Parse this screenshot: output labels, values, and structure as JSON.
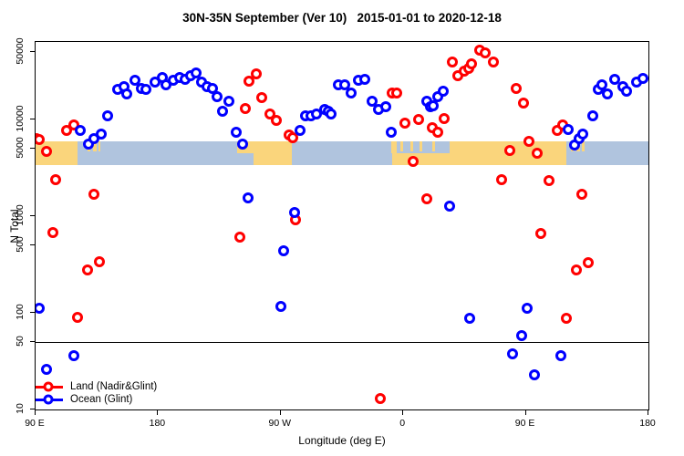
{
  "title": "30N-35N September (Ver 10)   2015-01-01 to 2020-12-18",
  "chart_data": {
    "type": "scatter",
    "title": "30N-35N September (Ver 10)   2015-01-01 to 2020-12-18",
    "xlabel": "Longitude (deg E)",
    "ylabel": "N Total",
    "y_scale": "log",
    "ylim": [
      10,
      64000
    ],
    "xlim_deg": [
      90,
      540
    ],
    "grid": false,
    "legend_position": "bottom-left",
    "reference_line_y": 50,
    "x_axis": {
      "ticks": [
        {
          "pos": 90,
          "label": "90 E"
        },
        {
          "pos": 180,
          "label": "180"
        },
        {
          "pos": 270,
          "label": "90 W"
        },
        {
          "pos": 360,
          "label": "0"
        },
        {
          "pos": 450,
          "label": "90 E"
        },
        {
          "pos": 540,
          "label": "180"
        }
      ]
    },
    "y_axis": {
      "ticks": [
        {
          "v": 10,
          "label": "10"
        },
        {
          "v": 50,
          "label": "50"
        },
        {
          "v": 100,
          "label": "100"
        },
        {
          "v": 500,
          "label": "500"
        },
        {
          "v": 1000,
          "label": "1000"
        },
        {
          "v": 5000,
          "label": "5000"
        },
        {
          "v": 10000,
          "label": "10000"
        },
        {
          "v": 50000,
          "label": "50000"
        }
      ]
    },
    "colors": {
      "land_marker": "#ff0000",
      "ocean_marker": "#0000ff",
      "map_ocean": "#b0c4de",
      "map_land": "#fad57c",
      "axis": "#000000"
    },
    "map_band": {
      "value_top": 5900,
      "value_bottom": 3350,
      "top_land": [
        [
          90,
          120.5
        ],
        [
          238,
          278
        ],
        [
          351,
          355
        ],
        [
          394,
          480
        ]
      ],
      "bottom_land": [
        [
          90,
          120.5
        ],
        [
          250,
          278
        ],
        [
          352,
          480
        ]
      ],
      "top_speckles": [
        [
          128.5,
          130.5
        ],
        [
          132.5,
          135
        ],
        [
          136,
          137.5
        ],
        [
          358,
          360
        ],
        [
          365,
          367
        ],
        [
          372,
          374
        ],
        [
          381,
          383
        ],
        [
          483,
          485
        ],
        [
          487,
          489.5
        ],
        [
          491,
          493
        ]
      ]
    },
    "series": [
      {
        "name": "Land (Nadir&Glint)",
        "marker": "land-point",
        "color": "#ff0000",
        "points": [
          [
            90.5,
            6300
          ],
          [
            93,
            6200
          ],
          [
            98,
            4700
          ],
          [
            105,
            2400
          ],
          [
            113,
            7700
          ],
          [
            118,
            8700
          ],
          [
            133,
            1700
          ],
          [
            103,
            670
          ],
          [
            137,
            340
          ],
          [
            128,
            280
          ],
          [
            121,
            89
          ],
          [
            244,
            13000
          ],
          [
            247,
            25000
          ],
          [
            252,
            29500
          ],
          [
            256,
            17000
          ],
          [
            262,
            11500
          ],
          [
            267,
            9700
          ],
          [
            276,
            6900
          ],
          [
            279,
            6500
          ],
          [
            240,
            610
          ],
          [
            281,
            910
          ],
          [
            343,
            13
          ],
          [
            352,
            18700
          ],
          [
            355,
            18700
          ],
          [
            361,
            9200
          ],
          [
            367,
            3700
          ],
          [
            371,
            9900
          ],
          [
            377,
            1500
          ],
          [
            381,
            8200
          ],
          [
            385,
            7400
          ],
          [
            390,
            10300
          ],
          [
            396,
            39000
          ],
          [
            400,
            28400
          ],
          [
            405,
            31700
          ],
          [
            408,
            34000
          ],
          [
            410,
            37300
          ],
          [
            416,
            52000
          ],
          [
            420,
            49000
          ],
          [
            426,
            39500
          ],
          [
            432,
            2400
          ],
          [
            438,
            4800
          ],
          [
            443,
            21000
          ],
          [
            448,
            14800
          ],
          [
            452,
            5900
          ],
          [
            458,
            4500
          ],
          [
            461,
            660
          ],
          [
            467,
            2340
          ],
          [
            473,
            7700
          ],
          [
            477,
            8800
          ],
          [
            480,
            88
          ],
          [
            487,
            280
          ],
          [
            496,
            330
          ],
          [
            491,
            1700
          ]
        ]
      },
      {
        "name": "Ocean (Glint)",
        "marker": "ocean-point",
        "color": "#0000ff",
        "points": [
          [
            123,
            7700
          ],
          [
            129,
            5600
          ],
          [
            133,
            6400
          ],
          [
            138,
            7100
          ],
          [
            143,
            10900
          ],
          [
            150,
            20400
          ],
          [
            155,
            21900
          ],
          [
            157,
            18400
          ],
          [
            163,
            25500
          ],
          [
            168,
            21000
          ],
          [
            171,
            20400
          ],
          [
            178,
            24200
          ],
          [
            183,
            26900
          ],
          [
            186,
            22800
          ],
          [
            191,
            25500
          ],
          [
            196,
            27000
          ],
          [
            200,
            26000
          ],
          [
            204,
            28400
          ],
          [
            208,
            30000
          ],
          [
            212,
            24400
          ],
          [
            216,
            21800
          ],
          [
            220,
            21000
          ],
          [
            223,
            17100
          ],
          [
            227,
            12100
          ],
          [
            232,
            15300
          ],
          [
            237,
            7400
          ],
          [
            242,
            5600
          ],
          [
            246,
            1540
          ],
          [
            270,
            116
          ],
          [
            272,
            437
          ],
          [
            280,
            1090
          ],
          [
            284,
            7700
          ],
          [
            288,
            10900
          ],
          [
            292,
            10900
          ],
          [
            296,
            11400
          ],
          [
            302,
            12700
          ],
          [
            305,
            12200
          ],
          [
            307,
            11400
          ],
          [
            312,
            22800
          ],
          [
            317,
            23000
          ],
          [
            322,
            18700
          ],
          [
            327,
            25500
          ],
          [
            332,
            26000
          ],
          [
            337,
            15300
          ],
          [
            342,
            12700
          ],
          [
            347,
            13500
          ],
          [
            351,
            7400
          ],
          [
            93,
            111
          ],
          [
            98,
            26
          ],
          [
            118,
            36
          ],
          [
            377,
            15300
          ],
          [
            380,
            13500
          ],
          [
            382,
            14000
          ],
          [
            385,
            17100
          ],
          [
            389,
            19600
          ],
          [
            394,
            1270
          ],
          [
            451,
            112
          ],
          [
            409,
            88
          ],
          [
            447,
            58
          ],
          [
            440,
            38
          ],
          [
            476,
            36
          ],
          [
            456,
            23
          ],
          [
            481,
            7900
          ],
          [
            486,
            5400
          ],
          [
            489,
            6400
          ],
          [
            492,
            7100
          ],
          [
            499,
            10900
          ],
          [
            503,
            20400
          ],
          [
            506,
            22800
          ],
          [
            510,
            18300
          ],
          [
            515,
            26000
          ],
          [
            521,
            21800
          ],
          [
            524,
            19600
          ],
          [
            531,
            24400
          ],
          [
            536,
            26500
          ]
        ]
      }
    ]
  }
}
